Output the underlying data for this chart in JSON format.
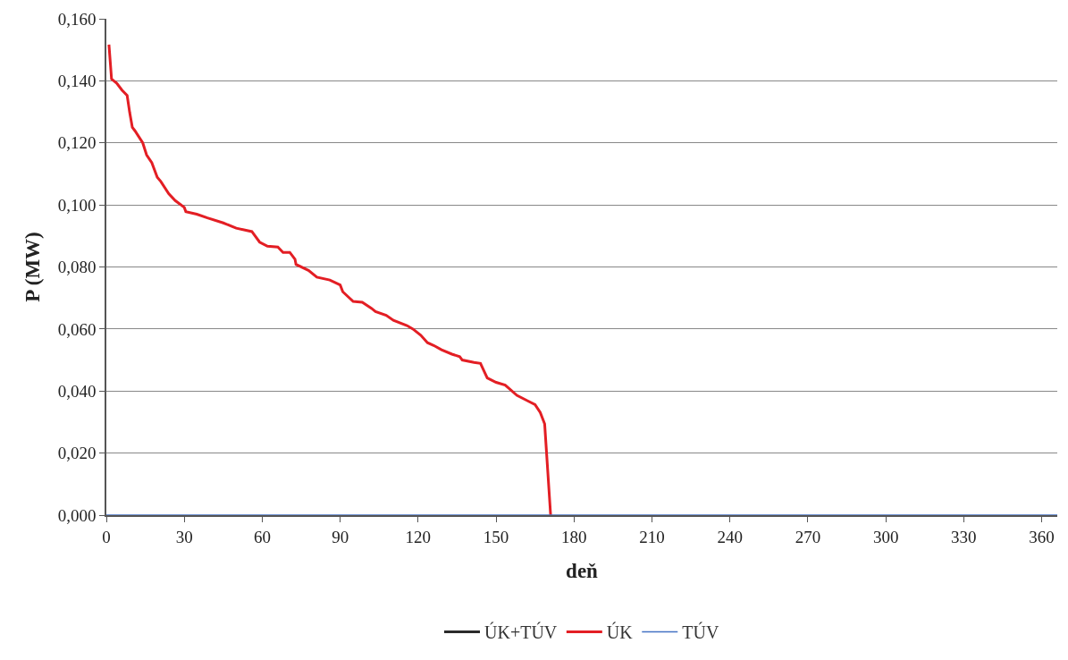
{
  "chart_data": {
    "type": "line",
    "xlabel": "deň",
    "ylabel": "P (MW)",
    "xlim": [
      0,
      366
    ],
    "xticks": [
      0,
      30,
      60,
      90,
      120,
      150,
      180,
      210,
      240,
      270,
      300,
      330,
      360
    ],
    "ylim": [
      0,
      0.16
    ],
    "yticks": [
      {
        "value": 0,
        "label": "0,000"
      },
      {
        "value": 0.02,
        "label": "0,020"
      },
      {
        "value": 0.04,
        "label": "0,040"
      },
      {
        "value": 0.06,
        "label": "0,060"
      },
      {
        "value": 0.08,
        "label": "0,080"
      },
      {
        "value": 0.1,
        "label": "0,100"
      },
      {
        "value": 0.12,
        "label": "0,120"
      },
      {
        "value": 0.14,
        "label": "0,140"
      },
      {
        "value": 0.16,
        "label": "0,160"
      }
    ],
    "grid": "y",
    "legend": "bottom",
    "marker": "none",
    "line_style": "solid",
    "series": [
      {
        "name": "ÚK+TÚV",
        "color": "#2b2b2b"
      },
      {
        "name": "ÚK",
        "color": "#e31e24",
        "x": [
          1,
          2,
          4,
          6,
          8,
          9,
          10,
          11,
          14,
          15.5,
          17.5,
          19.6,
          21,
          24,
          26.5,
          30,
          30.6,
          34.8,
          38.9,
          45,
          50,
          56,
          59,
          62,
          66,
          68,
          70.6,
          72.6,
          73,
          77.8,
          81,
          86,
          90,
          91,
          95,
          98.5,
          102,
          103.6,
          107.7,
          110.5,
          115.7,
          118,
          121,
          123.6,
          126,
          129,
          133,
          136,
          137,
          141.5,
          144,
          146.6,
          150,
          153.5,
          155,
          158,
          162,
          165,
          167,
          168.7,
          171
        ],
        "values": [
          0.1517,
          0.1406,
          0.1392,
          0.137,
          0.1353,
          0.1297,
          0.125,
          0.1239,
          0.12,
          0.1161,
          0.1136,
          0.1089,
          0.1075,
          0.1036,
          0.1014,
          0.0992,
          0.0978,
          0.097,
          0.0958,
          0.0942,
          0.0925,
          0.0914,
          0.088,
          0.0867,
          0.0864,
          0.0847,
          0.0847,
          0.0825,
          0.0808,
          0.0789,
          0.0767,
          0.0758,
          0.0742,
          0.072,
          0.0689,
          0.0686,
          0.0667,
          0.0656,
          0.0644,
          0.0628,
          0.0611,
          0.06,
          0.058,
          0.0556,
          0.0547,
          0.0533,
          0.0519,
          0.0511,
          0.05,
          0.0492,
          0.0489,
          0.0442,
          0.0428,
          0.0419,
          0.0408,
          0.0386,
          0.0369,
          0.0356,
          0.0331,
          0.0294,
          0
        ]
      },
      {
        "name": "TÚV",
        "color": "#4472c4",
        "x": [
          0,
          366
        ],
        "values": [
          0,
          0
        ]
      }
    ]
  }
}
